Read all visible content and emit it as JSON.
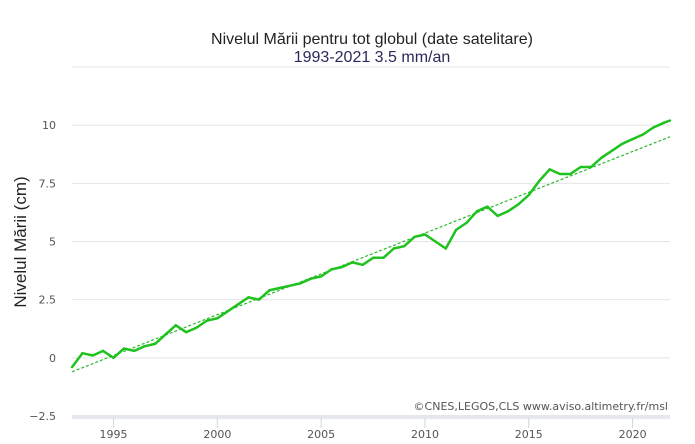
{
  "chart_data": {
    "type": "line",
    "title": "Nivelul Mării pentru tot globul (date satelitare)",
    "subtitle": "1993-2021 3.5 mm/an",
    "xlabel": "",
    "ylabel": "Nivelul Mării (cm)",
    "credit": "©CNES,LEGOS,CLS www.aviso.altimetry.fr/msl",
    "xlim": [
      1993,
      2021.8
    ],
    "ylim": [
      -2.5,
      12.5
    ],
    "x_ticks": [
      1995,
      2000,
      2005,
      2010,
      2015,
      2020
    ],
    "y_ticks": [
      -2.5,
      0,
      2.5,
      5,
      7.5,
      10
    ],
    "y_tick_labels": [
      "−2.5",
      "0",
      "2.5",
      "5",
      "7.5",
      "10"
    ],
    "grid": true,
    "colors": {
      "series": "#1fc21f",
      "trend": "#2db82d",
      "grid": "#e4e4e4"
    },
    "series": [
      {
        "name": "Nivelul Mării",
        "x": [
          1993.0,
          1993.5,
          1994.0,
          1994.5,
          1995.0,
          1995.5,
          1996.0,
          1996.5,
          1997.0,
          1997.5,
          1998.0,
          1998.5,
          1999.0,
          1999.5,
          2000.0,
          2000.5,
          2001.0,
          2001.5,
          2002.0,
          2002.5,
          2003.0,
          2003.5,
          2004.0,
          2004.5,
          2005.0,
          2005.5,
          2006.0,
          2006.5,
          2007.0,
          2007.5,
          2008.0,
          2008.5,
          2009.0,
          2009.5,
          2010.0,
          2010.5,
          2011.0,
          2011.5,
          2012.0,
          2012.5,
          2013.0,
          2013.5,
          2014.0,
          2014.5,
          2015.0,
          2015.5,
          2016.0,
          2016.5,
          2017.0,
          2017.5,
          2018.0,
          2018.5,
          2019.0,
          2019.5,
          2020.0,
          2020.5,
          2021.0,
          2021.5,
          2021.8
        ],
        "values": [
          -0.4,
          0.2,
          0.1,
          0.3,
          0.0,
          0.4,
          0.3,
          0.5,
          0.6,
          1.0,
          1.4,
          1.1,
          1.3,
          1.6,
          1.7,
          2.0,
          2.3,
          2.6,
          2.5,
          2.9,
          3.0,
          3.1,
          3.2,
          3.4,
          3.5,
          3.8,
          3.9,
          4.1,
          4.0,
          4.3,
          4.3,
          4.7,
          4.8,
          5.2,
          5.3,
          5.0,
          4.7,
          5.5,
          5.8,
          6.3,
          6.5,
          6.1,
          6.3,
          6.6,
          7.0,
          7.6,
          8.1,
          7.9,
          7.9,
          8.2,
          8.2,
          8.6,
          8.9,
          9.2,
          9.4,
          9.6,
          9.9,
          10.1,
          10.2
        ]
      },
      {
        "name": "Trend 3.5 mm/an",
        "x": [
          1993.0,
          2021.8
        ],
        "values": [
          -0.6,
          9.5
        ],
        "style": "dashed"
      }
    ]
  }
}
